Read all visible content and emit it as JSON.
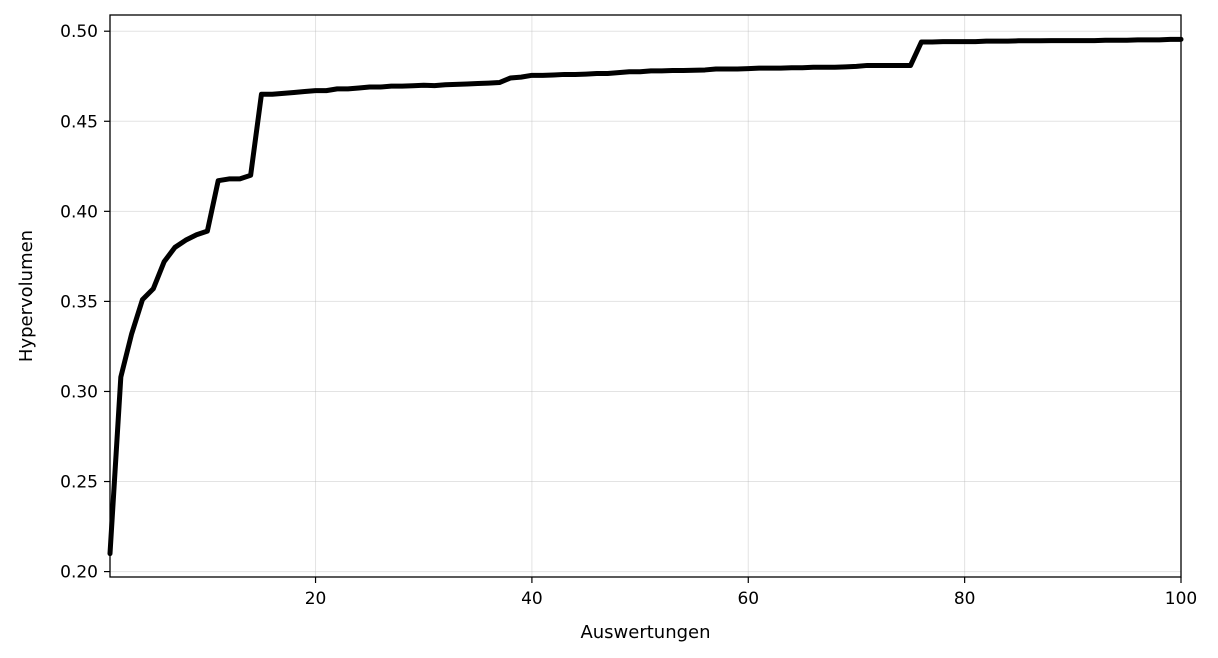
{
  "chart_data": {
    "type": "line",
    "title": "",
    "xlabel": "Auswertungen",
    "ylabel": "Hypervolumen",
    "xlim": [
      1,
      100
    ],
    "ylim": [
      0.197,
      0.509
    ],
    "xticks": [
      20,
      40,
      60,
      80,
      100
    ],
    "yticks": [
      0.2,
      0.25,
      0.3,
      0.35,
      0.4,
      0.45,
      0.5
    ],
    "xtick_labels": [
      "20",
      "40",
      "60",
      "80",
      "100"
    ],
    "ytick_labels": [
      "0.20",
      "0.25",
      "0.30",
      "0.35",
      "0.40",
      "0.45",
      "0.50"
    ],
    "grid": true,
    "legend": "none",
    "series": [
      {
        "color": "#000000",
        "x": [
          1,
          2,
          3,
          4,
          5,
          6,
          7,
          8,
          9,
          10,
          11,
          12,
          13,
          14,
          15,
          16,
          17,
          18,
          19,
          20,
          21,
          22,
          23,
          24,
          25,
          26,
          27,
          28,
          29,
          30,
          31,
          32,
          33,
          34,
          35,
          36,
          37,
          38,
          39,
          40,
          41,
          42,
          43,
          44,
          45,
          46,
          47,
          48,
          49,
          50,
          51,
          52,
          53,
          54,
          55,
          56,
          57,
          58,
          59,
          60,
          61,
          62,
          63,
          64,
          65,
          66,
          67,
          68,
          69,
          70,
          71,
          72,
          73,
          74,
          75,
          76,
          77,
          78,
          79,
          80,
          81,
          82,
          83,
          84,
          85,
          86,
          87,
          88,
          89,
          90,
          91,
          92,
          93,
          94,
          95,
          96,
          97,
          98,
          99,
          100
        ],
        "y": [
          0.21,
          0.308,
          0.332,
          0.351,
          0.357,
          0.372,
          0.38,
          0.384,
          0.387,
          0.389,
          0.417,
          0.418,
          0.418,
          0.42,
          0.465,
          0.465,
          0.4655,
          0.466,
          0.4665,
          0.467,
          0.467,
          0.468,
          0.468,
          0.4685,
          0.469,
          0.469,
          0.4695,
          0.4695,
          0.4697,
          0.47,
          0.4698,
          0.4703,
          0.4705,
          0.4707,
          0.471,
          0.4712,
          0.4715,
          0.474,
          0.4745,
          0.4755,
          0.4755,
          0.4757,
          0.476,
          0.476,
          0.4762,
          0.4765,
          0.4765,
          0.477,
          0.4775,
          0.4775,
          0.478,
          0.478,
          0.4782,
          0.4782,
          0.4783,
          0.4785,
          0.479,
          0.479,
          0.479,
          0.4792,
          0.4795,
          0.4795,
          0.4795,
          0.4797,
          0.4797,
          0.48,
          0.48,
          0.48,
          0.4802,
          0.4805,
          0.481,
          0.481,
          0.481,
          0.481,
          0.481,
          0.494,
          0.494,
          0.4942,
          0.4942,
          0.4942,
          0.4942,
          0.4945,
          0.4945,
          0.4945,
          0.4947,
          0.4947,
          0.4947,
          0.4948,
          0.4948,
          0.4948,
          0.4948,
          0.4948,
          0.495,
          0.495,
          0.495,
          0.4952,
          0.4952,
          0.4952,
          0.4955,
          0.4955
        ]
      }
    ]
  }
}
